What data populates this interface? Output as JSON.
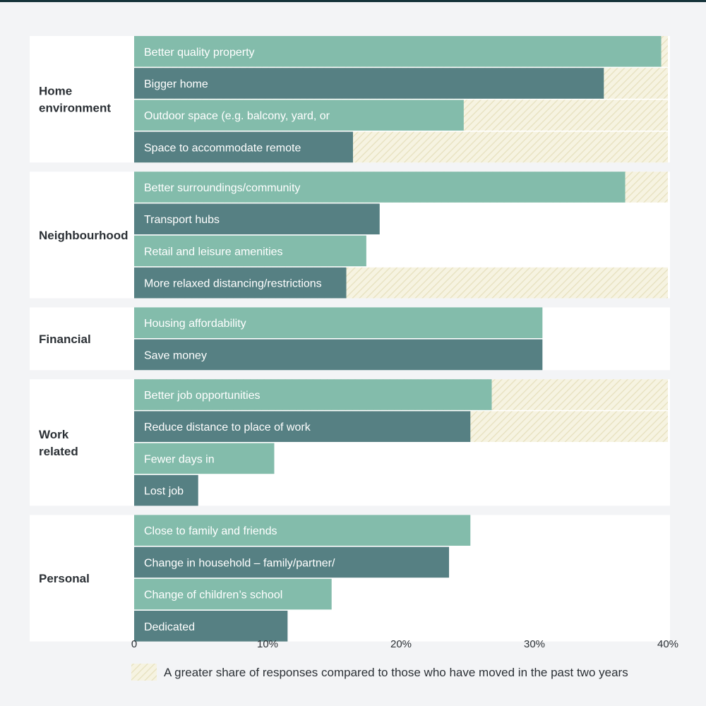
{
  "colors": {
    "background": "#f3f4f6",
    "panel": "#ffffff",
    "bar_light": "#83bcab",
    "bar_dark": "#568083",
    "hatch_fill": "#f6f3e1",
    "hatch_line": "#e6e0bd",
    "text": "#2b3035"
  },
  "chart_data": {
    "type": "bar",
    "orientation": "horizontal",
    "xlim": [
      0,
      40
    ],
    "ticks": [
      {
        "value": 0,
        "label": "0"
      },
      {
        "value": 10,
        "label": "10%"
      },
      {
        "value": 20,
        "label": "20%"
      },
      {
        "value": 30,
        "label": "30%"
      },
      {
        "value": 40,
        "label": "40%"
      }
    ],
    "groups": [
      {
        "name": "Home environment",
        "lines": [
          "Home",
          "environment"
        ],
        "bars": [
          {
            "label": "Better quality property",
            "value": 39.5,
            "highlight": 40
          },
          {
            "label": "Bigger home",
            "value": 35.2,
            "highlight": 40
          },
          {
            "label": "Outdoor space (e.g. balcony, yard, or",
            "value": 24.7,
            "highlight": 40
          },
          {
            "label": "Space to accommodate remote",
            "value": 16.4,
            "highlight": 40
          }
        ]
      },
      {
        "name": "Neighbourhood",
        "lines": [
          "Neighbourhood"
        ],
        "bars": [
          {
            "label": "Better surroundings/community",
            "value": 36.8,
            "highlight": 40
          },
          {
            "label": "Transport hubs",
            "value": 18.4,
            "highlight": null
          },
          {
            "label": "Retail and leisure amenities",
            "value": 17.4,
            "highlight": null
          },
          {
            "label": "More relaxed distancing/restrictions",
            "value": 15.9,
            "highlight": 40
          }
        ]
      },
      {
        "name": "Financial",
        "lines": [
          "Financial"
        ],
        "bars": [
          {
            "label": "Housing affordability",
            "value": 30.6,
            "highlight": null
          },
          {
            "label": "Save money",
            "value": 30.6,
            "highlight": null
          }
        ]
      },
      {
        "name": "Work related",
        "lines": [
          "Work",
          "related"
        ],
        "bars": [
          {
            "label": "Better job opportunities",
            "value": 26.8,
            "highlight": 40
          },
          {
            "label": "Reduce distance to place of work",
            "value": 25.2,
            "highlight": 40
          },
          {
            "label": "Fewer days in",
            "value": 10.5,
            "highlight": null
          },
          {
            "label": "Lost job",
            "value": 4.8,
            "highlight": null
          }
        ]
      },
      {
        "name": "Personal",
        "lines": [
          "Personal"
        ],
        "bars": [
          {
            "label": "Close to family and friends",
            "value": 25.2,
            "highlight": null
          },
          {
            "label": "Change in household – family/partner/",
            "value": 23.6,
            "highlight": null
          },
          {
            "label": "Change of children’s school",
            "value": 14.8,
            "highlight": null
          },
          {
            "label": "Dedicated",
            "value": 11.5,
            "highlight": null
          }
        ]
      }
    ],
    "legend": {
      "label": "A greater share of responses compared to those who have moved in the past two years",
      "placement": "bottom"
    }
  }
}
